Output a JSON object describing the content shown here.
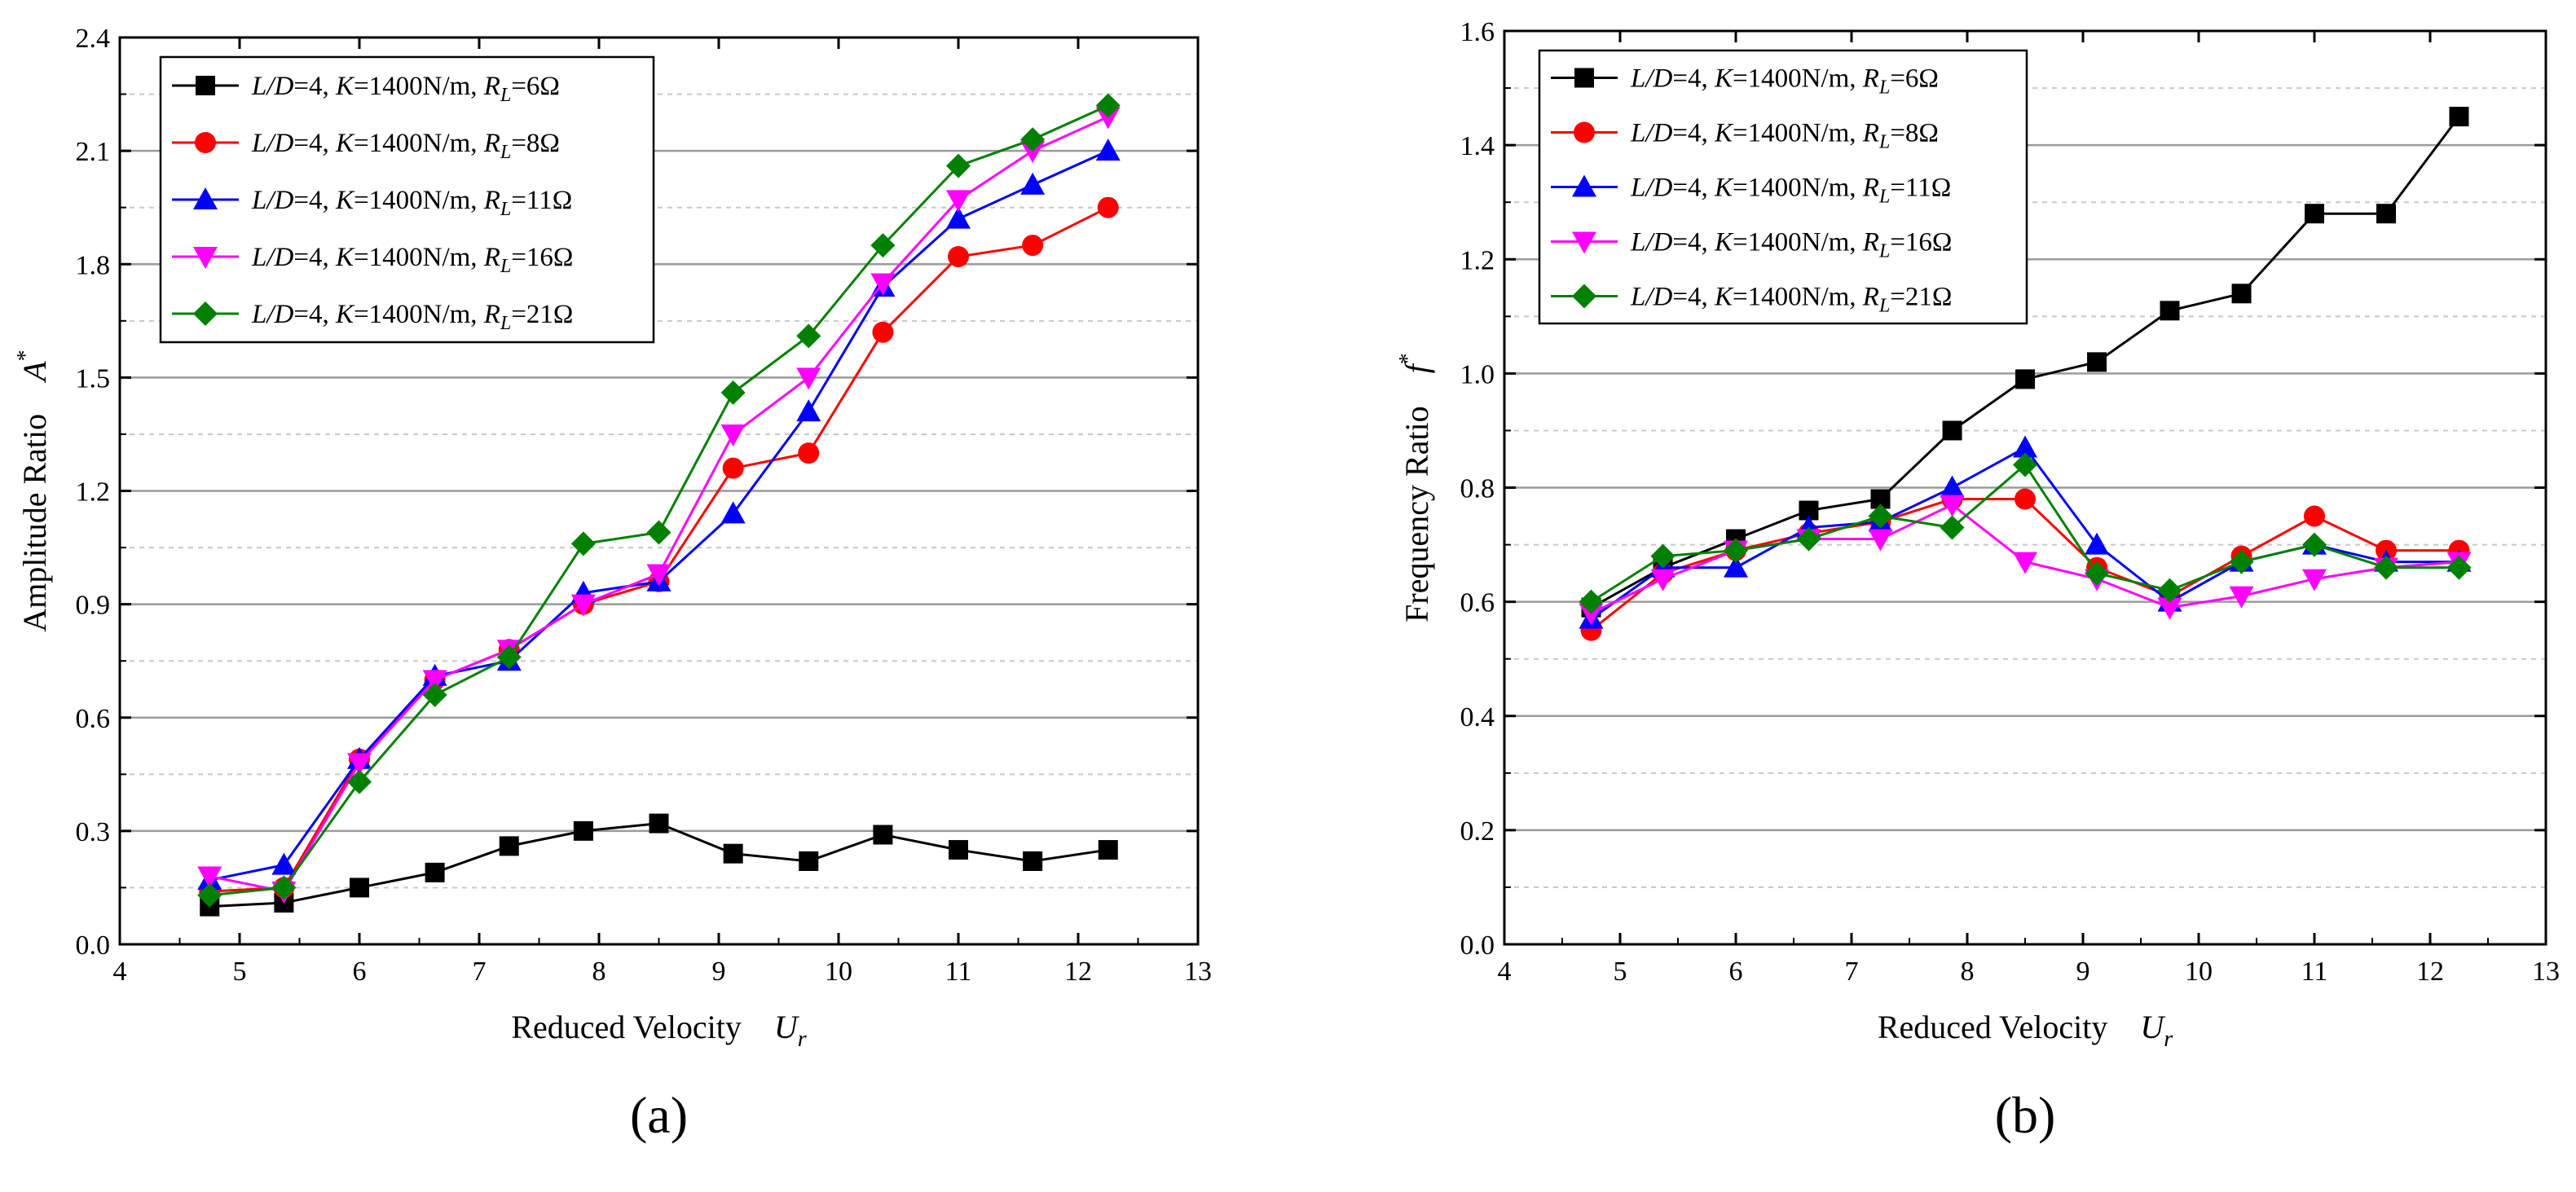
{
  "chart_data": [
    {
      "type": "line",
      "panel_label": "(a)",
      "xlabel": "Reduced Velocity",
      "xlabel_symbol": "U",
      "xlabel_sub": "r",
      "ylabel": "Amplitude Ratio",
      "ylabel_symbol": "A",
      "ylabel_sup": "*",
      "xlim": [
        4,
        13
      ],
      "ylim": [
        0,
        2.4
      ],
      "xticks": [
        "4",
        "5",
        "6",
        "7",
        "8",
        "9",
        "10",
        "11",
        "12",
        "13"
      ],
      "yticks": [
        "0.0",
        "0.3",
        "0.6",
        "0.9",
        "1.2",
        "1.5",
        "1.8",
        "2.1",
        "2.4"
      ],
      "grid": true,
      "legend_position": "top-left",
      "x": [
        4.75,
        5.37,
        6.0,
        6.63,
        7.25,
        7.87,
        8.5,
        9.12,
        9.75,
        10.37,
        11.0,
        11.62,
        12.25
      ],
      "series": [
        {
          "name": "L/D=4, K=1400N/m, RL=6Ω",
          "legend": {
            "p1": "L/D",
            "p2": "=4, ",
            "p3": "K",
            "p4": "=1400N/m, ",
            "p5": "R",
            "p6": "L",
            "p7": "=6Ω"
          },
          "color": "#000000",
          "marker": "square",
          "values": [
            0.1,
            0.11,
            0.15,
            0.19,
            0.26,
            0.3,
            0.32,
            0.24,
            0.22,
            0.29,
            0.25,
            0.22,
            0.25
          ]
        },
        {
          "name": "L/D=4, K=1400N/m, RL=8Ω",
          "legend": {
            "p1": "L/D",
            "p2": "=4, ",
            "p3": "K",
            "p4": "=1400N/m, ",
            "p5": "R",
            "p6": "L",
            "p7": "=8Ω"
          },
          "color": "#ff0000",
          "marker": "circle",
          "values": [
            0.14,
            0.15,
            0.49,
            0.7,
            0.78,
            0.9,
            0.96,
            1.26,
            1.3,
            1.62,
            1.82,
            1.85,
            1.95
          ]
        },
        {
          "name": "L/D=4, K=1400N/m, RL=11Ω",
          "legend": {
            "p1": "L/D",
            "p2": "=4, ",
            "p3": "K",
            "p4": "=1400N/m, ",
            "p5": "R",
            "p6": "L",
            "p7": "=11Ω"
          },
          "color": "#0000ff",
          "marker": "triangle-up",
          "values": [
            0.17,
            0.21,
            0.49,
            0.71,
            0.75,
            0.93,
            0.96,
            1.14,
            1.41,
            1.74,
            1.92,
            2.01,
            2.1
          ]
        },
        {
          "name": "L/D=4, K=1400N/m, RL=16Ω",
          "legend": {
            "p1": "L/D",
            "p2": "=4, ",
            "p3": "K",
            "p4": "=1400N/m, ",
            "p5": "R",
            "p6": "L",
            "p7": "=16Ω"
          },
          "color": "#ff00ff",
          "marker": "triangle-down",
          "values": [
            0.18,
            0.14,
            0.48,
            0.7,
            0.78,
            0.9,
            0.98,
            1.35,
            1.5,
            1.75,
            1.97,
            2.1,
            2.19
          ]
        },
        {
          "name": "L/D=4, K=1400N/m, RL=21Ω",
          "legend": {
            "p1": "L/D",
            "p2": "=4, ",
            "p3": "K",
            "p4": "=1400N/m, ",
            "p5": "R",
            "p6": "L",
            "p7": "=21Ω"
          },
          "color": "#008000",
          "marker": "diamond",
          "values": [
            0.13,
            0.15,
            0.43,
            0.66,
            0.76,
            1.06,
            1.09,
            1.46,
            1.61,
            1.85,
            2.06,
            2.13,
            2.22
          ]
        }
      ]
    },
    {
      "type": "line",
      "panel_label": "(b)",
      "xlabel": "Reduced Velocity",
      "xlabel_symbol": "U",
      "xlabel_sub": "r",
      "ylabel": "Frequency Ratio",
      "ylabel_symbol": "f",
      "ylabel_sup": "*",
      "xlim": [
        4,
        13
      ],
      "ylim": [
        0,
        1.6
      ],
      "xticks": [
        "4",
        "5",
        "6",
        "7",
        "8",
        "9",
        "10",
        "11",
        "12",
        "13"
      ],
      "yticks": [
        "0.0",
        "0.2",
        "0.4",
        "0.6",
        "0.8",
        "1.0",
        "1.2",
        "1.4",
        "1.6"
      ],
      "grid": true,
      "legend_position": "top-left",
      "x": [
        4.75,
        5.37,
        6.0,
        6.63,
        7.25,
        7.87,
        8.5,
        9.12,
        9.75,
        10.37,
        11.0,
        11.62,
        12.25
      ],
      "series": [
        {
          "name": "L/D=4, K=1400N/m, RL=6Ω",
          "legend": {
            "p1": "L/D",
            "p2": "=4, ",
            "p3": "K",
            "p4": "=1400N/m,  ",
            "p5": "R",
            "p6": "L",
            "p7": "=6Ω"
          },
          "color": "#000000",
          "marker": "square",
          "values": [
            0.59,
            0.66,
            0.71,
            0.76,
            0.78,
            0.9,
            0.99,
            1.02,
            1.11,
            1.14,
            1.28,
            1.28,
            1.45
          ]
        },
        {
          "name": "L/D=4, K=1400N/m, RL=8Ω",
          "legend": {
            "p1": "L/D",
            "p2": "=4, ",
            "p3": "K",
            "p4": "=1400N/m,  ",
            "p5": "R",
            "p6": "L",
            "p7": "=8Ω"
          },
          "color": "#ff0000",
          "marker": "circle",
          "values": [
            0.55,
            0.65,
            0.69,
            0.72,
            0.74,
            0.78,
            0.78,
            0.66,
            0.61,
            0.68,
            0.75,
            0.69,
            0.69
          ]
        },
        {
          "name": "L/D=4, K=1400N/m, RL=11Ω",
          "legend": {
            "p1": "L/D",
            "p2": "=4, ",
            "p3": "K",
            "p4": "=1400N/m,  ",
            "p5": "R",
            "p6": "L",
            "p7": "=11Ω"
          },
          "color": "#0000ff",
          "marker": "triangle-up",
          "values": [
            0.57,
            0.66,
            0.66,
            0.73,
            0.74,
            0.8,
            0.87,
            0.7,
            0.6,
            0.67,
            0.7,
            0.67,
            0.67
          ]
        },
        {
          "name": "L/D=4, K=1400N/m, RL=16Ω",
          "legend": {
            "p1": "L/D",
            "p2": "=4, ",
            "p3": "K",
            "p4": "=1400N/m,  ",
            "p5": "R",
            "p6": "L",
            "p7": "=16Ω"
          },
          "color": "#ff00ff",
          "marker": "triangle-down",
          "values": [
            0.58,
            0.64,
            0.69,
            0.71,
            0.71,
            0.77,
            0.67,
            0.64,
            0.59,
            0.61,
            0.64,
            0.66,
            0.67
          ]
        },
        {
          "name": "L/D=4, K=1400N/m, RL=21Ω",
          "legend": {
            "p1": "L/D",
            "p2": "=4, ",
            "p3": "K",
            "p4": "=1400N/m,  ",
            "p5": "R",
            "p6": "L",
            "p7": "=21Ω"
          },
          "color": "#008000",
          "marker": "diamond",
          "values": [
            0.6,
            0.68,
            0.69,
            0.71,
            0.75,
            0.73,
            0.84,
            0.65,
            0.62,
            0.67,
            0.7,
            0.66,
            0.66
          ]
        }
      ]
    }
  ]
}
